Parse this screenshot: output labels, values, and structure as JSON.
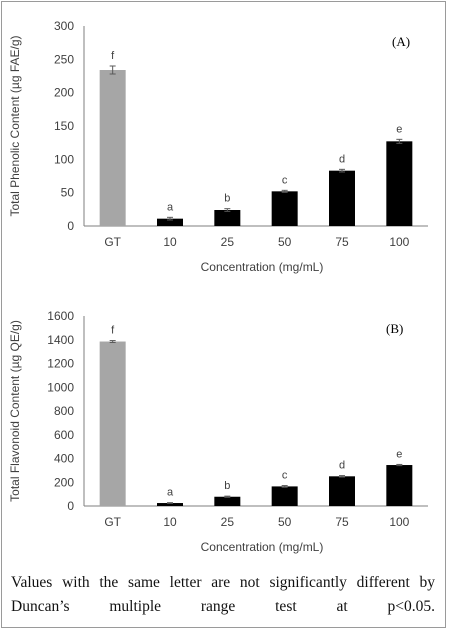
{
  "chart_data": [
    {
      "type": "bar",
      "panel_label": "(A)",
      "ylabel": "Total Phenolic Content (µg FAE/g)",
      "xlabel": "Concentration (mg/mL)",
      "categories": [
        "GT",
        "10",
        "25",
        "50",
        "75",
        "100"
      ],
      "values": [
        234,
        11,
        24,
        52,
        83,
        127
      ],
      "errors": [
        6,
        2,
        2,
        1.5,
        2,
        3
      ],
      "letters": [
        "f",
        "a",
        "b",
        "c",
        "d",
        "e"
      ],
      "bar_colors": [
        "#a6a6a6",
        "#000000",
        "#000000",
        "#000000",
        "#000000",
        "#000000"
      ],
      "ylim": [
        0,
        300
      ],
      "yticks": [
        0,
        50,
        100,
        150,
        200,
        250,
        300
      ],
      "grid": false
    },
    {
      "type": "bar",
      "panel_label": "(B)",
      "ylabel": "Total Flavonoid Content (µg QE/g)",
      "xlabel": "Concentration (mg/mL)",
      "categories": [
        "GT",
        "10",
        "25",
        "50",
        "75",
        "100"
      ],
      "values": [
        1385,
        25,
        78,
        165,
        250,
        345
      ],
      "errors": [
        8,
        3,
        5,
        7,
        6,
        5
      ],
      "letters": [
        "f",
        "a",
        "b",
        "c",
        "d",
        "e"
      ],
      "bar_colors": [
        "#a6a6a6",
        "#000000",
        "#000000",
        "#000000",
        "#000000",
        "#000000"
      ],
      "ylim": [
        0,
        1600
      ],
      "yticks": [
        0,
        200,
        400,
        600,
        800,
        1000,
        1200,
        1400,
        1600
      ],
      "grid": false
    }
  ],
  "caption": "Values with the same letter are not significantly different by Duncan’s multiple range test at p<0.05."
}
